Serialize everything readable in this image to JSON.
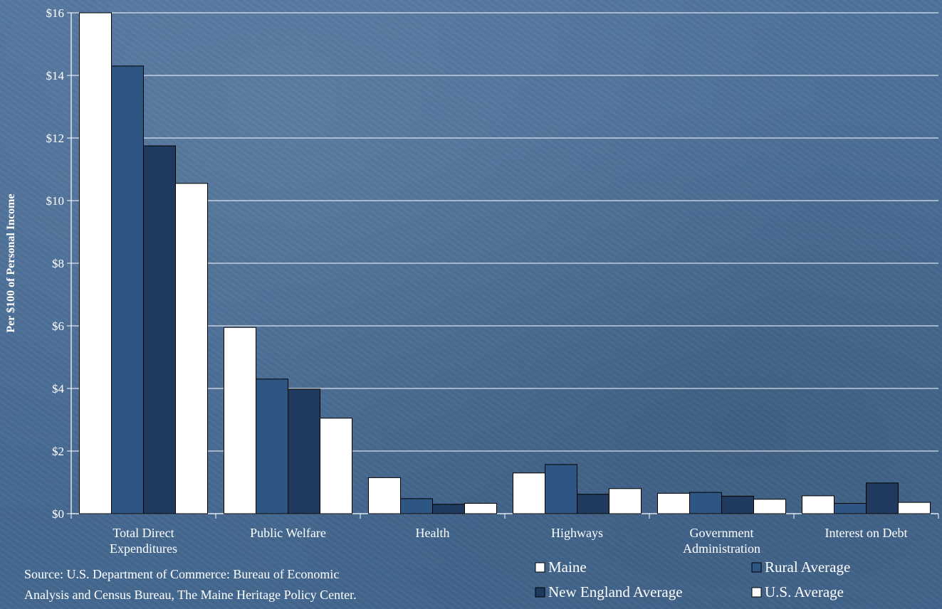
{
  "chart_data": {
    "type": "bar",
    "ylabel": "Per $100 of Personal Income",
    "ylim": [
      0,
      16
    ],
    "yticks": [
      "$0",
      "$2",
      "$4",
      "$6",
      "$8",
      "$10",
      "$12",
      "$14",
      "$16"
    ],
    "grid": true,
    "legend_position": "bottom-right",
    "categories": [
      [
        "Total Direct",
        "Expenditures"
      ],
      [
        "Public Welfare"
      ],
      [
        "Health"
      ],
      [
        "Highways"
      ],
      [
        "Government",
        "Administration"
      ],
      [
        "Interest on Debt"
      ]
    ],
    "series": [
      {
        "name": "Maine",
        "color": "#ffffff",
        "values": [
          16.0,
          5.95,
          1.15,
          1.3,
          0.65,
          0.57
        ]
      },
      {
        "name": "Rural Average",
        "color": "#2e5684",
        "values": [
          14.3,
          4.3,
          0.48,
          1.57,
          0.68,
          0.33
        ]
      },
      {
        "name": "New England Average",
        "color": "#1f3a5e",
        "values": [
          11.75,
          3.98,
          0.3,
          0.62,
          0.56,
          0.98
        ]
      },
      {
        "name": "U.S. Average",
        "color": "#ffffff",
        "values": [
          10.55,
          3.05,
          0.33,
          0.8,
          0.46,
          0.36
        ]
      }
    ]
  },
  "legend": {
    "items": [
      {
        "label": "Maine",
        "swatch": "#ffffff"
      },
      {
        "label": "Rural Average",
        "swatch": "#2e5684"
      },
      {
        "label": "New England Average",
        "swatch": "#1f3a5e"
      },
      {
        "label": "U.S. Average",
        "swatch": "#ffffff"
      }
    ]
  },
  "source": {
    "line1": "Source: U.S. Department of Commerce: Bureau of Economic",
    "line2": "Analysis and Census Bureau, The Maine Heritage Policy Center."
  }
}
